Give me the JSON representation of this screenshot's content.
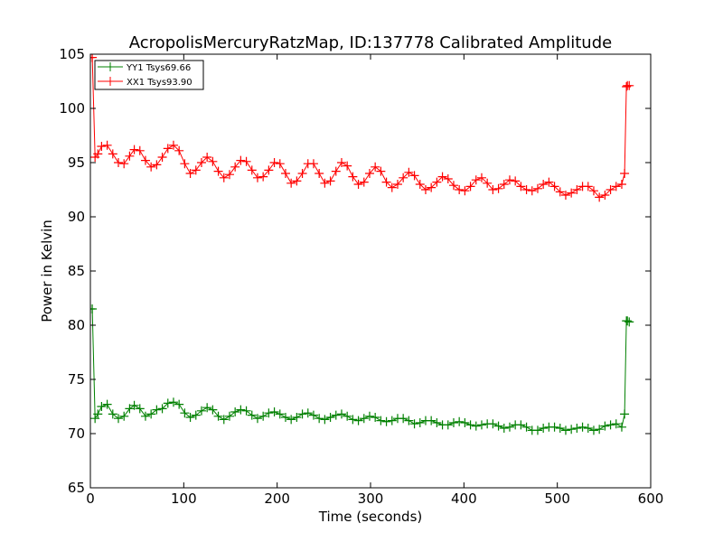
{
  "chart_data": {
    "type": "line",
    "title": "AcropolisMercuryRatzMap, ID:137778 Calibrated Amplitude",
    "xlabel": "Time (seconds)",
    "ylabel": "Power in Kelvin",
    "xlim": [
      0,
      600
    ],
    "ylim": [
      65,
      105
    ],
    "xticks": [
      "0",
      "100",
      "200",
      "300",
      "400",
      "500",
      "600"
    ],
    "yticks": [
      "65",
      "70",
      "75",
      "80",
      "85",
      "90",
      "95",
      "100",
      "105"
    ],
    "grid": false,
    "legend_position": "top-left",
    "marker": "plus",
    "series": [
      {
        "name": "YY1 Tsys69.66",
        "color": "#008000",
        "x": [
          0,
          2,
          5,
          8,
          12,
          18,
          24,
          30,
          36,
          42,
          47,
          53,
          59,
          65,
          71,
          77,
          83,
          89,
          95,
          101,
          107,
          113,
          119,
          125,
          131,
          137,
          143,
          149,
          155,
          161,
          167,
          173,
          179,
          185,
          191,
          197,
          203,
          209,
          215,
          221,
          227,
          233,
          239,
          245,
          251,
          257,
          263,
          269,
          275,
          281,
          287,
          293,
          299,
          305,
          311,
          317,
          323,
          329,
          335,
          341,
          347,
          353,
          359,
          365,
          371,
          377,
          383,
          389,
          395,
          401,
          407,
          413,
          419,
          425,
          431,
          437,
          443,
          449,
          455,
          461,
          467,
          473,
          479,
          485,
          491,
          497,
          503,
          509,
          515,
          521,
          527,
          533,
          539,
          545,
          551,
          557,
          563,
          569,
          572,
          574,
          575,
          577
        ],
        "y": [
          81.5,
          81.5,
          71.4,
          71.8,
          72.5,
          72.7,
          71.8,
          71.4,
          71.6,
          72.3,
          72.6,
          72.3,
          71.6,
          71.8,
          72.2,
          72.3,
          72.8,
          72.9,
          72.7,
          71.9,
          71.5,
          71.7,
          72.1,
          72.4,
          72.2,
          71.6,
          71.3,
          71.6,
          72.0,
          72.2,
          72.1,
          71.7,
          71.4,
          71.6,
          71.9,
          72.0,
          71.8,
          71.5,
          71.3,
          71.5,
          71.8,
          71.9,
          71.7,
          71.4,
          71.3,
          71.5,
          71.7,
          71.8,
          71.6,
          71.3,
          71.2,
          71.4,
          71.6,
          71.5,
          71.2,
          71.1,
          71.2,
          71.4,
          71.4,
          71.2,
          70.9,
          71.0,
          71.2,
          71.2,
          71.0,
          70.8,
          70.8,
          71.0,
          71.1,
          71.0,
          70.8,
          70.7,
          70.8,
          70.9,
          70.9,
          70.7,
          70.5,
          70.6,
          70.8,
          70.8,
          70.6,
          70.3,
          70.3,
          70.5,
          70.6,
          70.6,
          70.5,
          70.3,
          70.4,
          70.5,
          70.6,
          70.5,
          70.3,
          70.4,
          70.7,
          70.8,
          70.9,
          70.6,
          71.8,
          80.4,
          80.4,
          80.3
        ]
      },
      {
        "name": "XX1 Tsys93.90",
        "color": "#ff0000",
        "x": [
          0,
          2,
          5,
          8,
          12,
          18,
          24,
          30,
          36,
          42,
          47,
          53,
          59,
          65,
          71,
          77,
          83,
          89,
          95,
          101,
          107,
          113,
          119,
          125,
          131,
          137,
          143,
          149,
          155,
          161,
          167,
          173,
          179,
          185,
          191,
          197,
          203,
          209,
          215,
          221,
          227,
          233,
          239,
          245,
          251,
          257,
          263,
          269,
          275,
          281,
          287,
          293,
          299,
          305,
          311,
          317,
          323,
          329,
          335,
          341,
          347,
          353,
          359,
          365,
          371,
          377,
          383,
          389,
          395,
          401,
          407,
          413,
          419,
          425,
          431,
          437,
          443,
          449,
          455,
          461,
          467,
          473,
          479,
          485,
          491,
          497,
          503,
          509,
          515,
          521,
          527,
          533,
          539,
          545,
          551,
          557,
          563,
          569,
          572,
          574,
          575,
          577
        ],
        "y": [
          104.7,
          104.7,
          95.5,
          95.8,
          96.5,
          96.6,
          95.8,
          95.0,
          94.9,
          95.6,
          96.2,
          96.1,
          95.2,
          94.6,
          94.8,
          95.5,
          96.3,
          96.6,
          96.1,
          94.9,
          94.0,
          94.3,
          95.0,
          95.5,
          95.1,
          94.2,
          93.6,
          93.9,
          94.6,
          95.2,
          95.1,
          94.3,
          93.6,
          93.7,
          94.3,
          95.0,
          94.9,
          94.0,
          93.1,
          93.3,
          94.0,
          94.9,
          94.9,
          94.0,
          93.1,
          93.3,
          94.2,
          95.0,
          94.7,
          93.7,
          93.0,
          93.2,
          94.0,
          94.6,
          94.2,
          93.2,
          92.7,
          93.0,
          93.6,
          94.1,
          93.8,
          93.0,
          92.5,
          92.7,
          93.2,
          93.7,
          93.5,
          92.9,
          92.5,
          92.4,
          92.8,
          93.4,
          93.6,
          93.1,
          92.5,
          92.6,
          93.0,
          93.4,
          93.3,
          92.8,
          92.5,
          92.4,
          92.6,
          93.0,
          93.2,
          92.8,
          92.3,
          92.0,
          92.2,
          92.5,
          92.8,
          92.8,
          92.4,
          91.8,
          92.0,
          92.5,
          92.8,
          93.0,
          94.0,
          102.0,
          102.1,
          102.1
        ]
      }
    ]
  }
}
